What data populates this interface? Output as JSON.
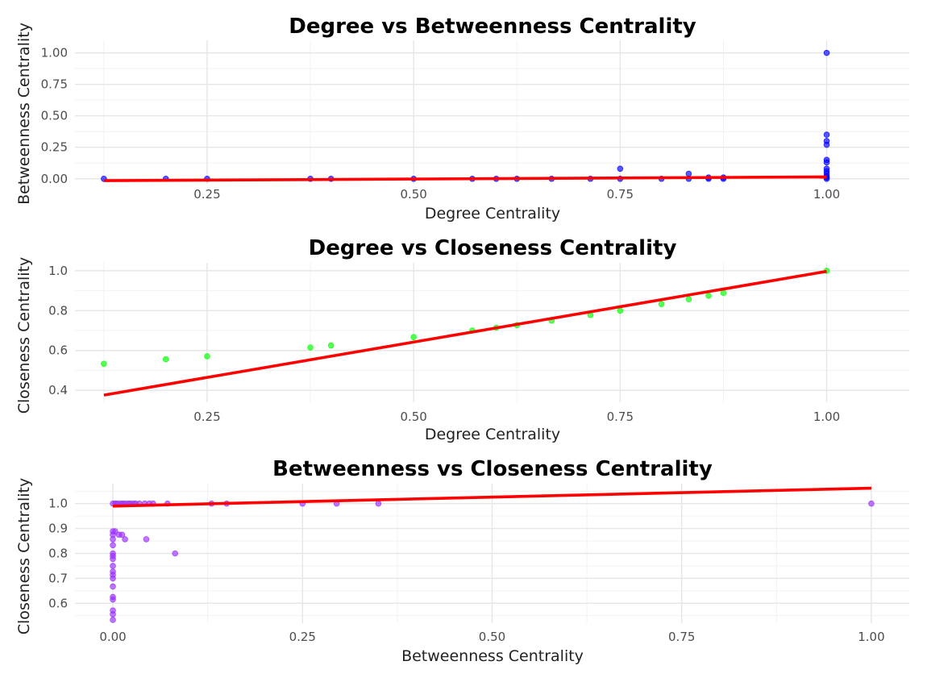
{
  "chart_data": [
    {
      "type": "scatter",
      "title": "Degree vs Betweenness Centrality",
      "xlabel": "Degree Centrality",
      "ylabel": "Betweenness Centrality",
      "xlim": [
        0.09,
        1.1
      ],
      "ylim": [
        -0.04,
        1.1
      ],
      "x_ticks": [
        0.25,
        0.5,
        0.75,
        1.0
      ],
      "x_tick_labels": [
        "0.25",
        "0.50",
        "0.75",
        "1.00"
      ],
      "y_ticks": [
        0.0,
        0.25,
        0.5,
        0.75,
        1.0
      ],
      "y_tick_labels": [
        "0.00",
        "0.25",
        "0.50",
        "0.75",
        "1.00"
      ],
      "grid": true,
      "point_color": "#0000ff",
      "trend_color": "#ff0000",
      "points": [
        [
          0.125,
          0.0
        ],
        [
          0.2,
          0.0
        ],
        [
          0.25,
          0.0
        ],
        [
          0.375,
          0.0
        ],
        [
          0.4,
          0.0
        ],
        [
          0.5,
          0.0
        ],
        [
          0.571,
          0.0
        ],
        [
          0.6,
          0.0
        ],
        [
          0.625,
          0.0
        ],
        [
          0.667,
          0.0
        ],
        [
          0.714,
          0.0
        ],
        [
          0.75,
          0.0
        ],
        [
          0.75,
          0.08
        ],
        [
          0.8,
          0.0
        ],
        [
          0.833,
          0.0
        ],
        [
          0.833,
          0.04
        ],
        [
          0.857,
          0.0
        ],
        [
          0.857,
          0.01
        ],
        [
          0.875,
          0.0
        ],
        [
          0.875,
          0.01
        ],
        [
          1.0,
          1.0
        ],
        [
          1.0,
          0.35
        ],
        [
          1.0,
          0.3
        ],
        [
          1.0,
          0.27
        ],
        [
          1.0,
          0.15
        ],
        [
          1.0,
          0.13
        ],
        [
          1.0,
          0.08
        ],
        [
          1.0,
          0.06
        ],
        [
          1.0,
          0.04
        ],
        [
          1.0,
          0.02
        ],
        [
          1.0,
          0.01
        ],
        [
          1.0,
          0.0
        ]
      ],
      "trend": [
        [
          0.125,
          -0.015
        ],
        [
          1.0,
          0.015
        ]
      ]
    },
    {
      "type": "scatter",
      "title": "Degree vs Closeness Centrality",
      "xlabel": "Degree Centrality",
      "ylabel": "Closeness Centrality",
      "xlim": [
        0.09,
        1.1
      ],
      "ylim": [
        0.34,
        1.04
      ],
      "x_ticks": [
        0.25,
        0.5,
        0.75,
        1.0
      ],
      "x_tick_labels": [
        "0.25",
        "0.50",
        "0.75",
        "1.00"
      ],
      "y_ticks": [
        0.4,
        0.6,
        0.8,
        1.0
      ],
      "y_tick_labels": [
        "0.4",
        "0.6",
        "0.8",
        "1.0"
      ],
      "grid": true,
      "point_color": "#00ff00",
      "trend_color": "#ff0000",
      "points": [
        [
          0.125,
          0.533
        ],
        [
          0.2,
          0.556
        ],
        [
          0.25,
          0.571
        ],
        [
          0.375,
          0.615
        ],
        [
          0.4,
          0.625
        ],
        [
          0.5,
          0.667
        ],
        [
          0.571,
          0.7
        ],
        [
          0.6,
          0.714
        ],
        [
          0.625,
          0.727
        ],
        [
          0.667,
          0.75
        ],
        [
          0.714,
          0.778
        ],
        [
          0.75,
          0.8
        ],
        [
          0.8,
          0.833
        ],
        [
          0.833,
          0.857
        ],
        [
          0.857,
          0.875
        ],
        [
          0.875,
          0.889
        ],
        [
          1.0,
          1.0
        ]
      ],
      "trend": [
        [
          0.125,
          0.376
        ],
        [
          1.0,
          0.997
        ]
      ]
    },
    {
      "type": "scatter",
      "title": "Betweenness vs Closeness Centrality",
      "xlabel": "Betweenness Centrality",
      "ylabel": "Closeness Centrality",
      "xlim": [
        -0.05,
        1.05
      ],
      "ylim": [
        0.52,
        1.08
      ],
      "x_ticks": [
        0.0,
        0.25,
        0.5,
        0.75,
        1.0
      ],
      "x_tick_labels": [
        "0.00",
        "0.25",
        "0.50",
        "0.75",
        "1.00"
      ],
      "y_ticks": [
        0.6,
        0.7,
        0.8,
        0.9,
        1.0
      ],
      "y_tick_labels": [
        "0.6",
        "0.7",
        "0.8",
        "0.9",
        "1.0"
      ],
      "grid": true,
      "point_color": "#9b30ff",
      "trend_color": "#ff0000",
      "points": [
        [
          0.0,
          1.0
        ],
        [
          0.003,
          1.0
        ],
        [
          0.006,
          1.0
        ],
        [
          0.01,
          1.0
        ],
        [
          0.013,
          1.0
        ],
        [
          0.016,
          1.0
        ],
        [
          0.02,
          1.0
        ],
        [
          0.023,
          1.0
        ],
        [
          0.027,
          1.0
        ],
        [
          0.03,
          1.0
        ],
        [
          0.035,
          1.0
        ],
        [
          0.042,
          1.0
        ],
        [
          0.048,
          1.0
        ],
        [
          0.053,
          1.0
        ],
        [
          0.072,
          1.0
        ],
        [
          0.13,
          1.0
        ],
        [
          0.15,
          1.0
        ],
        [
          0.25,
          1.0
        ],
        [
          0.295,
          1.0
        ],
        [
          0.35,
          1.0
        ],
        [
          1.0,
          1.0
        ],
        [
          0.0,
          0.889
        ],
        [
          0.003,
          0.889
        ],
        [
          0.008,
          0.875
        ],
        [
          0.0,
          0.875
        ],
        [
          0.012,
          0.875
        ],
        [
          0.0,
          0.857
        ],
        [
          0.016,
          0.857
        ],
        [
          0.044,
          0.857
        ],
        [
          0.0,
          0.833
        ],
        [
          0.0,
          0.8
        ],
        [
          0.0,
          0.79
        ],
        [
          0.082,
          0.8
        ],
        [
          0.0,
          0.778
        ],
        [
          0.0,
          0.75
        ],
        [
          0.0,
          0.727
        ],
        [
          0.0,
          0.714
        ],
        [
          0.0,
          0.7
        ],
        [
          0.0,
          0.667
        ],
        [
          0.0,
          0.625
        ],
        [
          0.0,
          0.615
        ],
        [
          0.0,
          0.571
        ],
        [
          0.0,
          0.556
        ],
        [
          0.0,
          0.533
        ]
      ],
      "trend": [
        [
          0.0,
          0.99
        ],
        [
          1.0,
          1.062
        ]
      ]
    }
  ]
}
